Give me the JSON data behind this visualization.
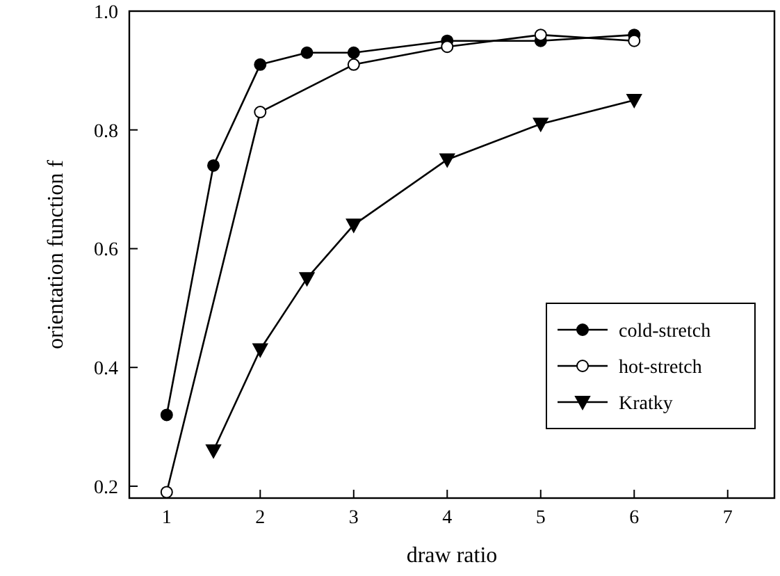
{
  "chart_data": {
    "type": "line",
    "xlabel": "draw ratio",
    "ylabel": "orientation function f",
    "xlim": [
      0.6,
      7.5
    ],
    "xticks": [
      1,
      2,
      3,
      4,
      5,
      6,
      7
    ],
    "ylim": [
      0.18,
      1.0
    ],
    "yticks": [
      {
        "value": 0.2,
        "label": "0.2"
      },
      {
        "value": 0.4,
        "label": "0.4"
      },
      {
        "value": 0.6,
        "label": "0.6"
      },
      {
        "value": 0.8,
        "label": "0.8"
      },
      {
        "value": 1,
        "label": "1.0"
      }
    ],
    "grid": false,
    "legend": "bottom right",
    "line_style": "solid",
    "series": [
      {
        "name": "cold-stretch",
        "color": "#000000",
        "marker": "circle",
        "x": [
          1,
          1.5,
          2,
          2.5,
          3,
          4,
          5,
          6
        ],
        "values": [
          0.32,
          0.74,
          0.91,
          0.93,
          0.93,
          0.95,
          0.95,
          0.96
        ]
      },
      {
        "name": "hot-stretch",
        "color": "#000000",
        "marker": "circle",
        "x": [
          1,
          2,
          3,
          4,
          5,
          6
        ],
        "values": [
          0.19,
          0.83,
          0.91,
          0.94,
          0.96,
          0.95
        ]
      },
      {
        "name": "Kratky",
        "color": "#000000",
        "marker": "triangle",
        "x": [
          1.5,
          2,
          2.5,
          3,
          4,
          5,
          6
        ],
        "values": [
          0.26,
          0.43,
          0.55,
          0.64,
          0.75,
          0.81,
          0.85
        ]
      }
    ]
  }
}
